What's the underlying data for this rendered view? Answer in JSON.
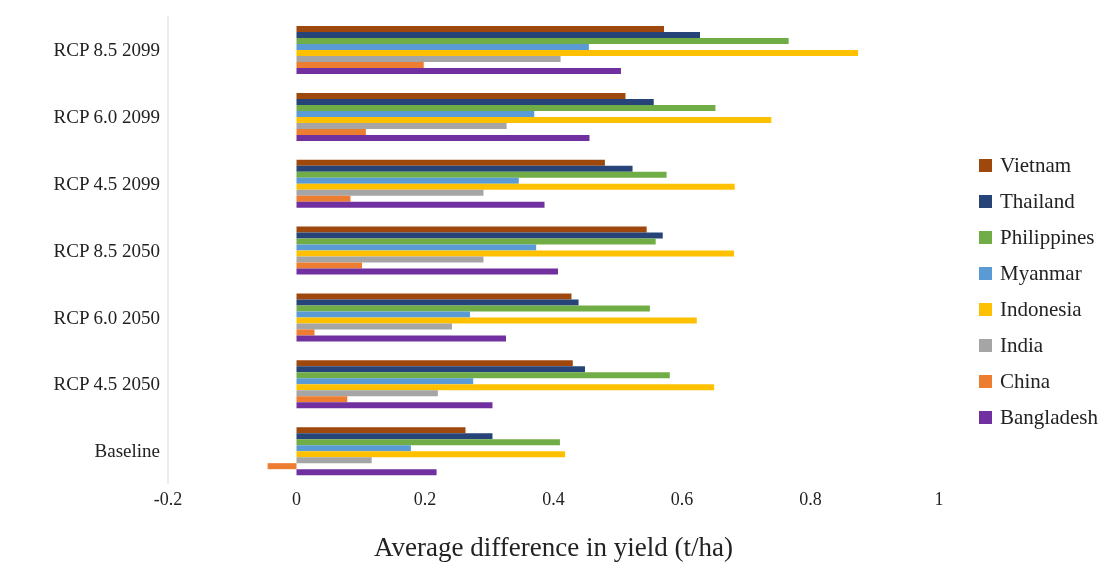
{
  "chart_data": {
    "type": "bar",
    "orientation": "horizontal",
    "xlabel": "Average difference in yield (t/ha)",
    "categories": [
      "RCP 8.5 2099",
      "RCP 6.0 2099",
      "RCP 4.5 2099",
      "RCP 8.5 2050",
      "RCP 6.0 2050",
      "RCP 4.5 2050",
      "Baseline"
    ],
    "series": [
      {
        "name": "Vietnam",
        "color": "#9e480e",
        "values": [
          0.572,
          0.512,
          0.48,
          0.545,
          0.428,
          0.43,
          0.263
        ]
      },
      {
        "name": "Thailand",
        "color": "#264478",
        "values": [
          0.628,
          0.556,
          0.523,
          0.57,
          0.439,
          0.449,
          0.305
        ]
      },
      {
        "name": "Philippines",
        "color": "#70ad47",
        "values": [
          0.766,
          0.652,
          0.576,
          0.559,
          0.55,
          0.581,
          0.41
        ]
      },
      {
        "name": "Myanmar",
        "color": "#5b9bd5",
        "values": [
          0.455,
          0.37,
          0.346,
          0.373,
          0.27,
          0.275,
          0.178
        ]
      },
      {
        "name": "Indonesia",
        "color": "#ffc000",
        "values": [
          0.874,
          0.739,
          0.682,
          0.681,
          0.623,
          0.65,
          0.418
        ]
      },
      {
        "name": "India",
        "color": "#a5a5a5",
        "values": [
          0.411,
          0.327,
          0.291,
          0.291,
          0.242,
          0.22,
          0.117
        ]
      },
      {
        "name": "China",
        "color": "#ed7d31",
        "values": [
          0.198,
          0.108,
          0.084,
          0.102,
          0.028,
          0.079,
          -0.045
        ]
      },
      {
        "name": "Bangladesh",
        "color": "#7030a0",
        "values": [
          0.505,
          0.456,
          0.386,
          0.407,
          0.326,
          0.305,
          0.218
        ]
      }
    ],
    "xlim": [
      -0.2,
      1
    ],
    "xticks": [
      -0.2,
      0,
      0.2,
      0.4,
      0.6,
      0.8,
      1
    ],
    "grid": false,
    "legend": "right"
  }
}
